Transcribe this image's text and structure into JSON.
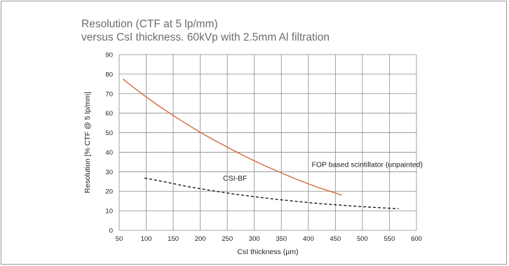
{
  "chart_data": {
    "type": "line",
    "title": "Resolution (CTF at 5 lp/mm)",
    "subtitle": "versus CsI thickness. 60kVp with 2.5mm Al filtration",
    "xlabel": "CsI thickness (µm)",
    "ylabel": "Resolution [% CTF @ 5 lp/mm]",
    "xlim": [
      50,
      600
    ],
    "ylim": [
      0,
      90
    ],
    "xticks": [
      50,
      100,
      150,
      200,
      250,
      300,
      350,
      400,
      450,
      500,
      550,
      600
    ],
    "yticks": [
      0,
      10,
      20,
      30,
      40,
      50,
      60,
      70,
      80,
      90
    ],
    "grid": true,
    "series": [
      {
        "name": "FOP based scintillator (unpainted)",
        "color": "#d4693a",
        "style": "solid",
        "x": [
          57,
          75,
          100,
          125,
          150,
          175,
          200,
          225,
          250,
          275,
          300,
          325,
          350,
          375,
          400,
          425,
          450,
          462
        ],
        "y": [
          77.5,
          73.5,
          68.3,
          63.4,
          58.8,
          54.4,
          50.2,
          46.3,
          42.6,
          39.0,
          35.6,
          32.4,
          29.4,
          26.5,
          23.8,
          21.3,
          19.1,
          18.0
        ]
      },
      {
        "name": "CSI-BF",
        "color": "#1a1a1a",
        "style": "dashed",
        "x": [
          97,
          125,
          150,
          175,
          200,
          225,
          250,
          275,
          300,
          325,
          350,
          375,
          400,
          425,
          450,
          475,
          500,
          525,
          550,
          567
        ],
        "y": [
          26.8,
          25.3,
          23.9,
          22.5,
          21.3,
          20.2,
          19.1,
          18.1,
          17.2,
          16.4,
          15.6,
          14.9,
          14.2,
          13.6,
          13.1,
          12.6,
          12.1,
          11.7,
          11.3,
          11.1
        ]
      }
    ],
    "annotations": [
      {
        "text": "FOP based scintillator (unpainted)",
        "x": 406,
        "y": 32.5
      },
      {
        "text": "CSI-BF",
        "x": 242,
        "y": 25.5
      }
    ]
  }
}
